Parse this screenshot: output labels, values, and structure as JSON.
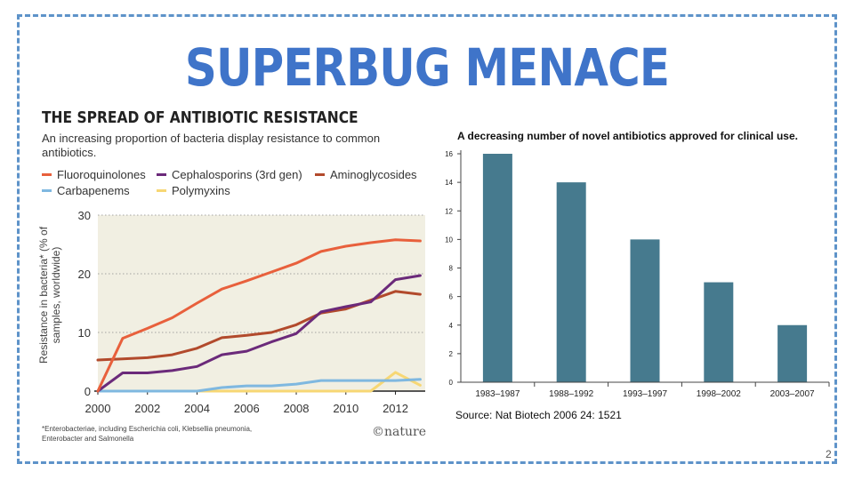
{
  "slide": {
    "title": "SUPERBUG MENACE",
    "page_number": "2"
  },
  "left_chart": {
    "title": "THE SPREAD OF ANTIBIOTIC RESISTANCE",
    "subtitle": "An increasing proportion of bacteria display resistance to common antibiotics.",
    "ylabel": "Resistance in bacteria* (% of samples, worldwide)",
    "footnote_line1": "*Enterobacteriae, including Escherichia coli, Klebsellia pneumonia,",
    "footnote_line2": "Enterobacter and Salmonella",
    "credit": "©nature"
  },
  "right_chart": {
    "title": "A decreasing number of novel antibiotics approved for clinical use.",
    "source": "Source: Nat Biotech 2006 24: 1521"
  },
  "chart_data": [
    {
      "type": "line",
      "title": "THE SPREAD OF ANTIBIOTIC RESISTANCE",
      "subtitle": "An increasing proportion of bacteria display resistance to common antibiotics.",
      "xlabel": "",
      "ylabel": "Resistance in bacteria* (% of samples, worldwide)",
      "xlim": [
        2000,
        2013.2
      ],
      "ylim": [
        0,
        30
      ],
      "xticks": [
        2000,
        2002,
        2004,
        2006,
        2008,
        2010,
        2012
      ],
      "yticks": [
        0,
        10,
        20,
        30
      ],
      "grid": "horizontal dotted",
      "legend": "top",
      "x": [
        2000,
        2001,
        2002,
        2003,
        2004,
        2005,
        2006,
        2007,
        2008,
        2009,
        2010,
        2011,
        2012,
        2013
      ],
      "series": [
        {
          "name": "Fluoroquinolones",
          "color": "#e8603c",
          "values": [
            0,
            9,
            10.7,
            12.5,
            15,
            17.4,
            18.8,
            20.3,
            21.8,
            23.8,
            24.7,
            25.3,
            25.8,
            25.6
          ]
        },
        {
          "name": "Cephalosporins (3rd gen)",
          "color": "#6b2a7a",
          "values": [
            0,
            3.1,
            3.1,
            3.5,
            4.2,
            6.2,
            6.8,
            8.4,
            9.8,
            13.5,
            14.4,
            15.2,
            19,
            19.7
          ]
        },
        {
          "name": "Aminoglycosides",
          "color": "#b24a2c",
          "values": [
            5.3,
            5.5,
            5.7,
            6.2,
            7.3,
            9.1,
            9.5,
            10,
            11.3,
            13.3,
            14,
            15.5,
            17,
            16.5
          ]
        },
        {
          "name": "Carbapenems",
          "color": "#7fb8e0",
          "values": [
            0,
            0,
            0,
            0,
            0,
            0.6,
            0.9,
            0.9,
            1.2,
            1.8,
            1.8,
            1.8,
            1.8,
            2
          ]
        },
        {
          "name": "Polymyxins",
          "color": "#f7d774",
          "values": [
            0,
            0,
            0,
            0,
            0,
            0,
            0,
            0,
            0,
            0,
            0,
            0,
            3.2,
            1
          ]
        }
      ]
    },
    {
      "type": "bar",
      "title": "A decreasing number of novel antibiotics approved for clinical use.",
      "categories": [
        "1983–1987",
        "1988–1992",
        "1993–1997",
        "1998–2002",
        "2003–2007"
      ],
      "values": [
        16,
        14,
        10,
        7,
        4
      ],
      "ylim": [
        0,
        16
      ],
      "yticks": [
        0,
        2,
        4,
        6,
        8,
        10,
        12,
        14,
        16
      ],
      "color": "#467a8e",
      "grid": false,
      "xlabel": "",
      "ylabel": ""
    }
  ]
}
